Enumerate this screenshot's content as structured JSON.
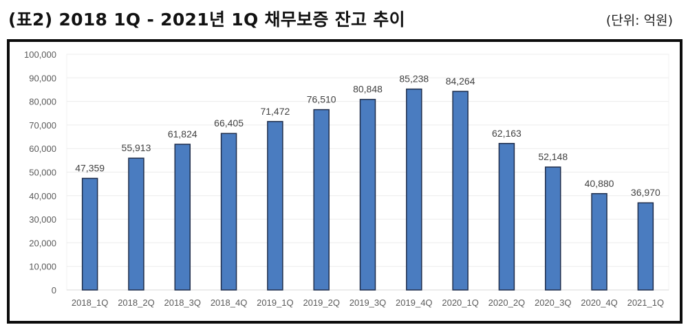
{
  "header": {
    "title": "(표2) 2018 1Q - 2021년 1Q 채무보증 잔고 추이",
    "unit": "(단위: 억원)"
  },
  "colors": {
    "bar_fill": "#4a7cc0",
    "bar_outline": "#1f2d4a",
    "gridline": "#ececec",
    "frame": "#0c0c0c",
    "tick_text": "#595959"
  },
  "chart_data": {
    "type": "bar",
    "title": "(표2) 2018 1Q - 2021년 1Q 채무보증 잔고 추이",
    "subtitle": "(단위: 억원)",
    "xlabel": "",
    "ylabel": "",
    "categories": [
      "2018_1Q",
      "2018_2Q",
      "2018_3Q",
      "2018_4Q",
      "2019_1Q",
      "2019_2Q",
      "2019_3Q",
      "2019_4Q",
      "2020_1Q",
      "2020_2Q",
      "2020_3Q",
      "2020_4Q",
      "2021_1Q"
    ],
    "values": [
      47359,
      55913,
      61824,
      66405,
      71472,
      76510,
      80848,
      85238,
      84264,
      62163,
      52148,
      40880,
      36970
    ],
    "value_labels": [
      "47,359",
      "55,913",
      "61,824",
      "66,405",
      "71,472",
      "76,510",
      "80,848",
      "85,238",
      "84,264",
      "62,163",
      "52,148",
      "40,880",
      "36,970"
    ],
    "ylim": [
      0,
      100000
    ],
    "yticks": [
      0,
      10000,
      20000,
      30000,
      40000,
      50000,
      60000,
      70000,
      80000,
      90000,
      100000
    ],
    "ytick_labels": [
      "0",
      "10,000",
      "20,000",
      "30,000",
      "40,000",
      "50,000",
      "60,000",
      "70,000",
      "80,000",
      "90,000",
      "100,000"
    ],
    "grid": true,
    "legend": "none"
  }
}
